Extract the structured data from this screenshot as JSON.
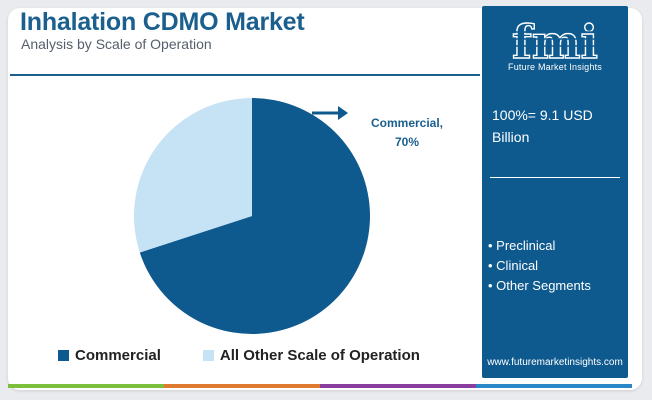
{
  "header": {
    "title": "Inhalation CDMO Market",
    "subtitle": "Analysis by Scale of Operation"
  },
  "chart_data": {
    "type": "pie",
    "categories": [
      "Commercial",
      "All Other Scale of Operation"
    ],
    "values": [
      70,
      30
    ],
    "unit": "%",
    "colors": [
      "#0e5a8f",
      "#c6e2f5"
    ],
    "data_labels": [
      "Commercial,",
      "70%"
    ],
    "legend": [
      "Commercial",
      "All Other Scale of Operation"
    ],
    "legend_placement": "bottom"
  },
  "sidebar": {
    "logo_text": "fmi",
    "logo_subtext": "Future Market Insights",
    "total_label": "100%= 9.1 USD Billion",
    "segments": [
      "Preclinical",
      "Clinical",
      "Other Segments"
    ],
    "website": "www.futuremarketinsights.com"
  },
  "colors": {
    "brand_blue": "#0e5a8f",
    "light_blue": "#c6e2f5",
    "bottom_bar": [
      "#7bbf3a",
      "#e07a2f",
      "#8a3fa0",
      "#2b88c8"
    ]
  },
  "icons": {
    "label_pointer": "arrow-right-icon"
  }
}
